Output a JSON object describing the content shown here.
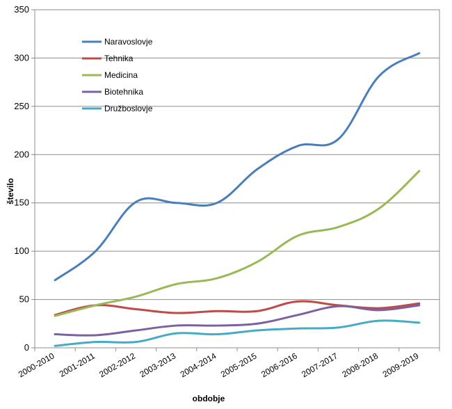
{
  "chart_data": {
    "type": "line",
    "title": "",
    "xlabel": "obdobje",
    "ylabel": "število",
    "categories": [
      "2000-2010",
      "2001-2011",
      "2002-2012",
      "2003-2013",
      "2004-2014",
      "2005-2015",
      "2006-2016",
      "2007-2017",
      "2008-2018",
      "2009-2019"
    ],
    "ylim": [
      0,
      350
    ],
    "yticks": [
      "0",
      "50",
      "100",
      "150",
      "200",
      "250",
      "300",
      "350"
    ],
    "grid": true,
    "legend_position": "top-left",
    "series": [
      {
        "name": "Naravoslovje",
        "color": "#4a7ebb",
        "values": [
          70,
          100,
          151,
          150,
          150,
          185,
          209,
          216,
          281,
          305
        ]
      },
      {
        "name": "Tehnika",
        "color": "#be4b48",
        "values": [
          34,
          44,
          40,
          36,
          38,
          38,
          48,
          44,
          41,
          46
        ]
      },
      {
        "name": "Medicina",
        "color": "#98b954",
        "values": [
          33,
          44,
          53,
          66,
          72,
          89,
          116,
          125,
          144,
          183
        ]
      },
      {
        "name": "Biotehnika",
        "color": "#7d60a0",
        "values": [
          14,
          13,
          18,
          23,
          23,
          25,
          34,
          43,
          39,
          44
        ]
      },
      {
        "name": "Družboslovje",
        "color": "#46aac5",
        "values": [
          2,
          6,
          6,
          15,
          14,
          18,
          20,
          21,
          28,
          26
        ]
      }
    ]
  }
}
